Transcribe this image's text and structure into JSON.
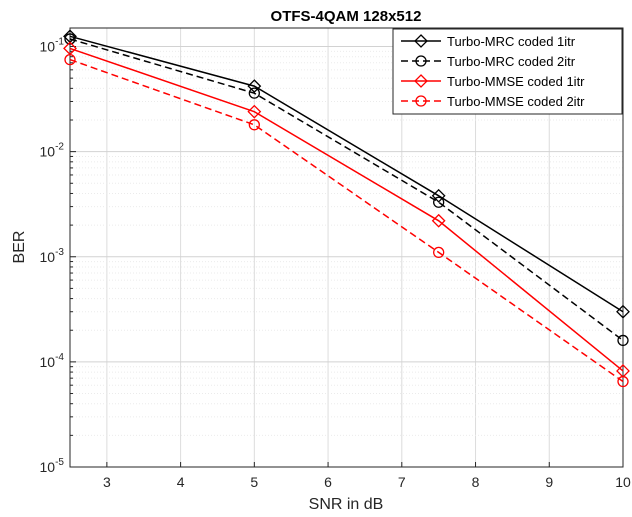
{
  "chart_data": {
    "type": "line",
    "title": "OTFS-4QAM 128x512",
    "xlabel": "SNR in dB",
    "ylabel": "BER",
    "xlim": [
      2.5,
      10
    ],
    "ylim": [
      1e-05,
      0.15
    ],
    "yscale": "log",
    "grid": true,
    "legend_position": "top-right",
    "xticks": [
      "3",
      "4",
      "5",
      "6",
      "7",
      "8",
      "9",
      "10"
    ],
    "yticks": [
      {
        "base": "10",
        "exp": "-5"
      },
      {
        "base": "10",
        "exp": "-4"
      },
      {
        "base": "10",
        "exp": "-3"
      },
      {
        "base": "10",
        "exp": "-2"
      },
      {
        "base": "10",
        "exp": "-1"
      }
    ],
    "x": [
      2.5,
      5,
      7.5,
      10
    ],
    "series": [
      {
        "name": "Turbo-MRC coded 1itr",
        "values": [
          0.125,
          0.042,
          0.0038,
          0.0003
        ],
        "color": "#000000",
        "dash": "solid",
        "marker": "diamond"
      },
      {
        "name": "Turbo-MRC coded 2itr",
        "values": [
          0.118,
          0.036,
          0.0033,
          0.00016
        ],
        "color": "#000000",
        "dash": "dashed",
        "marker": "circle"
      },
      {
        "name": "Turbo-MMSE coded 1itr",
        "values": [
          0.096,
          0.024,
          0.0022,
          8.2e-05
        ],
        "color": "#ff0000",
        "dash": "solid",
        "marker": "diamond"
      },
      {
        "name": "Turbo-MMSE coded 2itr",
        "values": [
          0.075,
          0.018,
          0.0011,
          6.5e-05
        ],
        "color": "#ff0000",
        "dash": "dashed",
        "marker": "circle"
      }
    ]
  }
}
